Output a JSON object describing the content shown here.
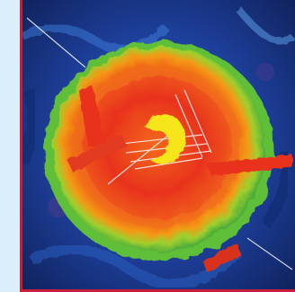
{
  "image": {
    "subject": "abstract-painting",
    "colors": {
      "background_blue": "#1d3f9a",
      "outer_green": "#66c23a",
      "ring_orange": "#f39a16",
      "core_red": "#e8321f",
      "center_yellow": "#f7e51c",
      "frame_red": "#c81e3a",
      "panel_light_blue": "#dbeefb"
    }
  }
}
